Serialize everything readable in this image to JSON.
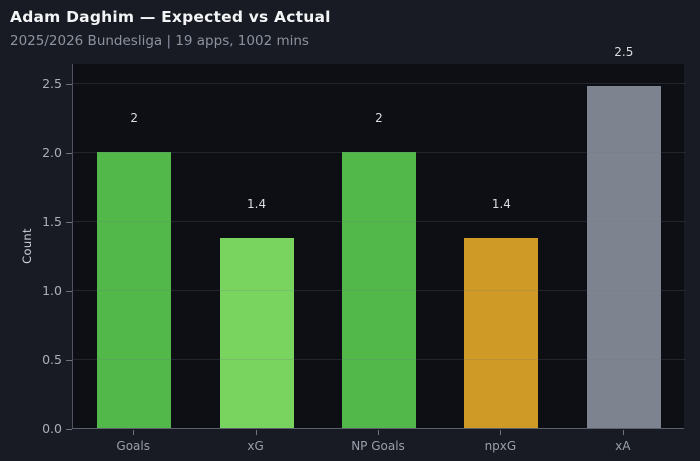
{
  "header": {
    "title": "Adam Daghim — Expected vs Actual",
    "subtitle": "2025/2026 Bundesliga | 19 apps, 1002 mins"
  },
  "chart_data": {
    "type": "bar",
    "title": "Adam Daghim — Expected vs Actual",
    "subtitle": "2025/2026 Bundesliga | 19 apps, 1002 mins",
    "categories": [
      "Goals",
      "xG",
      "NP Goals",
      "npxG",
      "xA"
    ],
    "values": [
      2,
      1.4,
      2,
      1.4,
      2.5
    ],
    "value_labels": [
      "2",
      "1.4",
      "2",
      "1.4",
      "2.5"
    ],
    "bar_heights": [
      2.0,
      1.38,
      2.0,
      1.38,
      2.48
    ],
    "bar_colors": [
      "#53b84a",
      "#79d45f",
      "#53b84a",
      "#d09a26",
      "#7d8490"
    ],
    "xlabel": "",
    "ylabel": "Count",
    "ylim": [
      0,
      2.64
    ],
    "yticks": [
      0.0,
      0.5,
      1.0,
      1.5,
      2.0,
      2.5
    ],
    "ytick_labels": [
      "0.0",
      "0.5",
      "1.0",
      "1.5",
      "2.0",
      "2.5"
    ],
    "grid": true,
    "legend": false
  },
  "colors": {
    "page_bg": "#181b23",
    "plot_bg": "#0d0f15",
    "title_text": "#f3f4f6",
    "subtitle_text": "#8c93a0",
    "tick_text": "#a9afba",
    "value_label_text": "#d9dce1",
    "axis_line": "#59606b",
    "green_actual": "#53b84a",
    "green_expected": "#79d45f",
    "orange_npxg": "#d09a26",
    "gray_xa": "#7d8490"
  }
}
